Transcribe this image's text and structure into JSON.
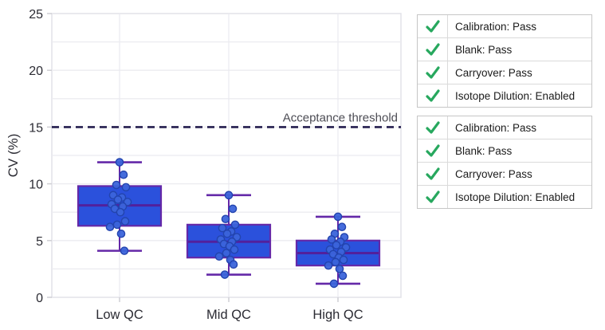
{
  "chart_data": {
    "type": "boxplot",
    "title": "",
    "xlabel": "",
    "ylabel": "CV (%)",
    "categories": [
      "Low QC",
      "Mid QC",
      "High QC"
    ],
    "y_axis": {
      "range": [
        0,
        25
      ],
      "ticks": [
        0,
        5,
        10,
        15,
        20,
        25
      ],
      "minor_grid_step": 2.5,
      "grid": true
    },
    "threshold": {
      "value": 15,
      "label": "Acceptance threshold",
      "style": "dashed"
    },
    "series": [
      {
        "name": "Low QC",
        "min": 4.1,
        "q1": 6.3,
        "median": 8.1,
        "q3": 9.8,
        "max": 11.9,
        "points": [
          11.9,
          10.8,
          9.9,
          9.7,
          9.0,
          8.8,
          8.6,
          8.4,
          8.2,
          8.0,
          7.8,
          7.5,
          6.7,
          6.4,
          6.2,
          5.6,
          4.1
        ]
      },
      {
        "name": "Mid QC",
        "min": 2.0,
        "q1": 3.5,
        "median": 4.9,
        "q3": 6.4,
        "max": 9.0,
        "points": [
          9.0,
          7.8,
          6.9,
          6.4,
          6.1,
          5.8,
          5.6,
          5.3,
          5.1,
          4.9,
          4.7,
          4.5,
          4.2,
          3.9,
          3.6,
          3.3,
          2.9,
          2.0
        ]
      },
      {
        "name": "High QC",
        "min": 1.2,
        "q1": 2.8,
        "median": 3.9,
        "q3": 5.0,
        "max": 7.1,
        "points": [
          7.1,
          6.2,
          5.6,
          5.3,
          5.1,
          4.9,
          4.6,
          4.4,
          4.2,
          4.0,
          3.8,
          3.5,
          3.3,
          3.1,
          2.8,
          2.5,
          1.9,
          1.2
        ]
      }
    ],
    "colors": {
      "box_fill": "#2b51dc",
      "box_edge": "#6428a8",
      "median": "#52209c",
      "whisker": "#6428a8",
      "point_fill": "#3b64da",
      "point_edge": "#2344ae",
      "grid": "#ebebf0",
      "axis_border": "#e2e2e8",
      "tick_mark": "#cfcfd4",
      "threshold_line": "#241e4e"
    }
  },
  "qc_panels": [
    {
      "rows": [
        {
          "icon": "check-icon",
          "label": "Calibration: Pass"
        },
        {
          "icon": "check-icon",
          "label": "Blank: Pass"
        },
        {
          "icon": "check-icon",
          "label": "Carryover: Pass"
        },
        {
          "icon": "check-icon",
          "label": "Isotope Dilution: Enabled"
        }
      ]
    },
    {
      "rows": [
        {
          "icon": "check-icon",
          "label": "Calibration: Pass"
        },
        {
          "icon": "check-icon",
          "label": "Blank: Pass"
        },
        {
          "icon": "check-icon",
          "label": "Carryover: Pass"
        },
        {
          "icon": "check-icon",
          "label": "Isotope Dilution: Enabled"
        }
      ]
    }
  ],
  "check_color": "#27a85e"
}
